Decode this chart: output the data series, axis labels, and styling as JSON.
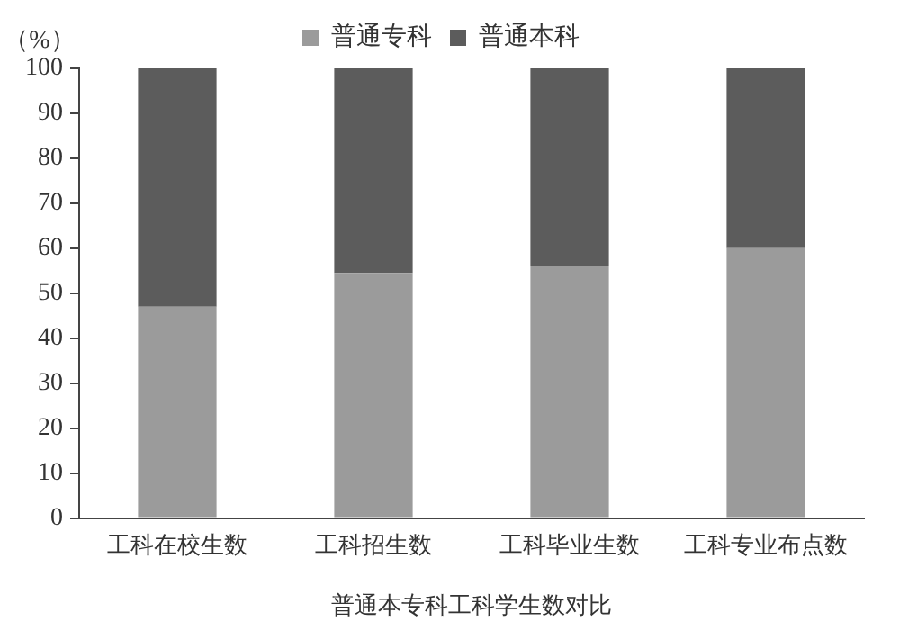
{
  "chart_data": {
    "type": "bar",
    "stacked": true,
    "ylabel": "（%）",
    "xlabel": "普通本专科工科学生数对比",
    "categories": [
      "工科在校生数",
      "工科招生数",
      "工科毕业生数",
      "工科专业布点数"
    ],
    "series": [
      {
        "name": "普通专科",
        "color": "#9b9b9b",
        "values": [
          47,
          54.5,
          56,
          60
        ]
      },
      {
        "name": "普通本科",
        "color": "#5c5c5c",
        "values": [
          53,
          45.5,
          44,
          40
        ]
      }
    ],
    "ylim": [
      0,
      100
    ],
    "yticks": [
      0,
      10,
      20,
      30,
      40,
      50,
      60,
      70,
      80,
      90,
      100
    ],
    "grid": false,
    "legend": "top"
  }
}
